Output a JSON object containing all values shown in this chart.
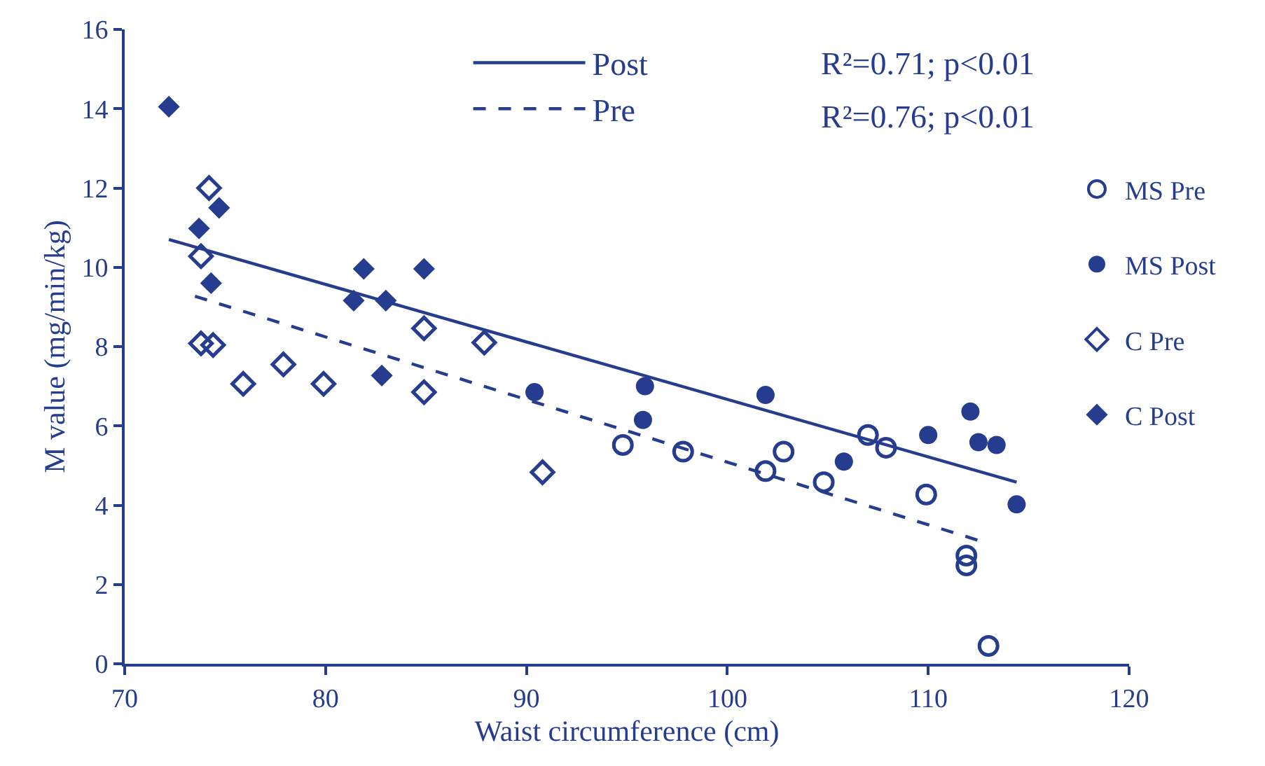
{
  "chart_data": {
    "type": "scatter",
    "xlabel": "Waist circumference (cm)",
    "ylabel": "M value (mg/min/kg)",
    "xlim": [
      70,
      120
    ],
    "xticks": [
      70,
      80,
      90,
      100,
      110,
      120
    ],
    "ylim": [
      0,
      16
    ],
    "yticks": [
      0,
      2,
      4,
      6,
      8,
      10,
      12,
      14,
      16
    ],
    "legend": "right",
    "annotations": [
      "R²=0.71; p<0.01",
      "R²=0.76; p<0.01"
    ],
    "series": [
      {
        "name": "Post",
        "type": "line",
        "color": "#263d8f",
        "line_style": "solid",
        "marker": "none",
        "x": [
          72.2,
          114.4
        ],
        "values": [
          10.7,
          4.58
        ]
      },
      {
        "name": "Pre",
        "type": "line",
        "color": "#263d8f",
        "line_style": "dashed",
        "marker": "none",
        "x": [
          73.5,
          112.7
        ],
        "values": [
          9.27,
          3.08
        ]
      },
      {
        "name": "MS Pre",
        "color": "#263d8f",
        "marker": "circle-open",
        "x": [
          94.8,
          97.8,
          101.9,
          102.8,
          104.8,
          107.0,
          107.9,
          109.9,
          111.9,
          111.9,
          113.0
        ],
        "values": [
          5.52,
          5.35,
          4.86,
          5.35,
          4.58,
          5.77,
          5.45,
          4.27,
          2.73,
          2.48,
          0.45
        ]
      },
      {
        "name": "MS Post",
        "color": "#263d8f",
        "marker": "circle",
        "x": [
          90.4,
          95.9,
          95.8,
          101.9,
          105.8,
          110.0,
          112.1,
          112.5,
          113.4,
          114.4
        ],
        "values": [
          6.85,
          7.0,
          6.15,
          6.78,
          5.1,
          5.77,
          6.36,
          5.59,
          5.52,
          4.02
        ]
      },
      {
        "name": "C Pre",
        "color": "#263d8f",
        "marker": "diamond-open",
        "x": [
          74.2,
          73.8,
          73.8,
          74.4,
          75.9,
          77.9,
          79.9,
          84.9,
          84.9,
          87.9,
          90.8
        ],
        "values": [
          12.0,
          10.28,
          8.08,
          8.04,
          7.06,
          7.55,
          7.06,
          8.46,
          6.85,
          8.1,
          4.83
        ]
      },
      {
        "name": "C Post",
        "color": "#263d8f",
        "marker": "diamond",
        "x": [
          72.2,
          73.7,
          74.7,
          74.3,
          81.4,
          81.9,
          83.0,
          82.8,
          84.9
        ],
        "values": [
          14.05,
          10.98,
          11.5,
          9.6,
          9.16,
          9.96,
          9.16,
          7.27,
          9.96
        ]
      }
    ]
  }
}
